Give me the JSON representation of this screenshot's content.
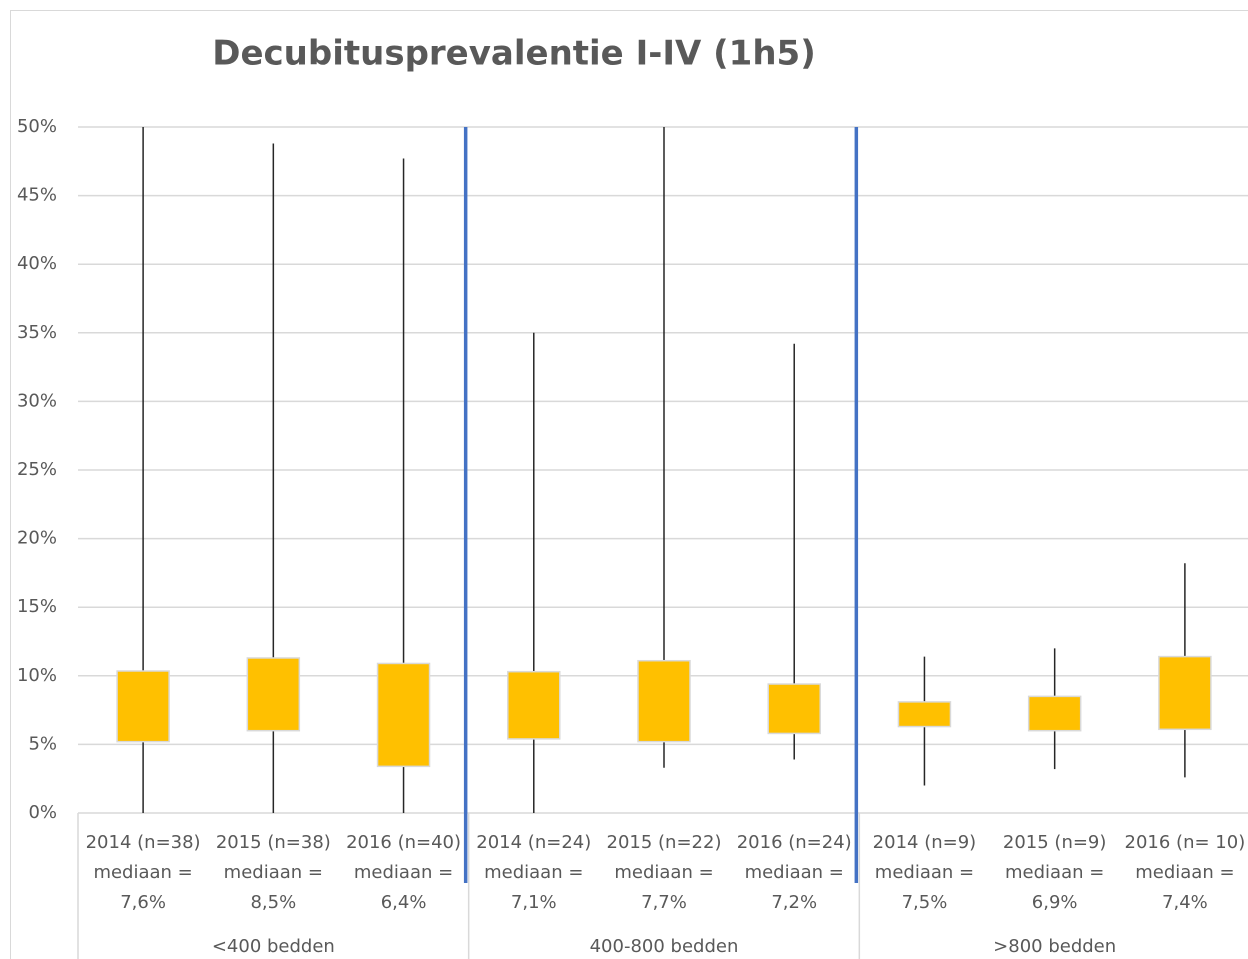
{
  "chart_data": {
    "type": "box",
    "title": "Decubitusprevalentie I-IV (1h5)",
    "categories": [
      [
        "2014 (n=38)",
        "mediaan =",
        "7,6%"
      ],
      [
        "2015 (n=38)",
        "mediaan =",
        "8,5%"
      ],
      [
        "2016 (n=40)",
        "mediaan =",
        "6,4%"
      ],
      [
        "2014 (n=24)",
        "mediaan =",
        "7,1%"
      ],
      [
        "2015 (n=22)",
        "mediaan =",
        "7,7%"
      ],
      [
        "2016 (n=24)",
        "mediaan =",
        "7,2%"
      ],
      [
        "2014 (n=9)",
        "mediaan =",
        "7,5%"
      ],
      [
        "2015 (n=9)",
        "mediaan =",
        "6,9%"
      ],
      [
        "2016 (n= 10)",
        "mediaan =",
        "7,4%"
      ]
    ],
    "groups": [
      {
        "name": "<400 bedden",
        "size": 3
      },
      {
        "name": "400-800 bedden",
        "size": 3
      },
      {
        "name": ">800 bedden",
        "size": 3
      }
    ],
    "low": [
      0,
      0,
      0,
      0,
      3.3,
      3.9,
      2.0,
      3.2,
      2.6
    ],
    "q1": [
      5.2,
      6.0,
      3.4,
      5.4,
      5.2,
      5.8,
      6.3,
      6.0,
      6.1
    ],
    "q3": [
      10.35,
      11.3,
      10.9,
      10.3,
      11.1,
      9.4,
      8.1,
      8.5,
      11.4
    ],
    "high": [
      50,
      48.8,
      47.7,
      35.0,
      50,
      34.2,
      11.4,
      12.0,
      18.2
    ],
    "color": "#ffc000",
    "ylim": [
      0,
      50
    ],
    "yticks": [
      {
        "value": 0,
        "label": "0%"
      },
      {
        "value": 5,
        "label": "5%"
      },
      {
        "value": 10,
        "label": "10%"
      },
      {
        "value": 15,
        "label": "15%"
      },
      {
        "value": 20,
        "label": "20%"
      },
      {
        "value": 25,
        "label": "25%"
      },
      {
        "value": 30,
        "label": "30%"
      },
      {
        "value": 35,
        "label": "35%"
      },
      {
        "value": 40,
        "label": "40%"
      },
      {
        "value": 45,
        "label": "45%"
      },
      {
        "value": 50,
        "label": "50%"
      }
    ],
    "grid": true
  }
}
